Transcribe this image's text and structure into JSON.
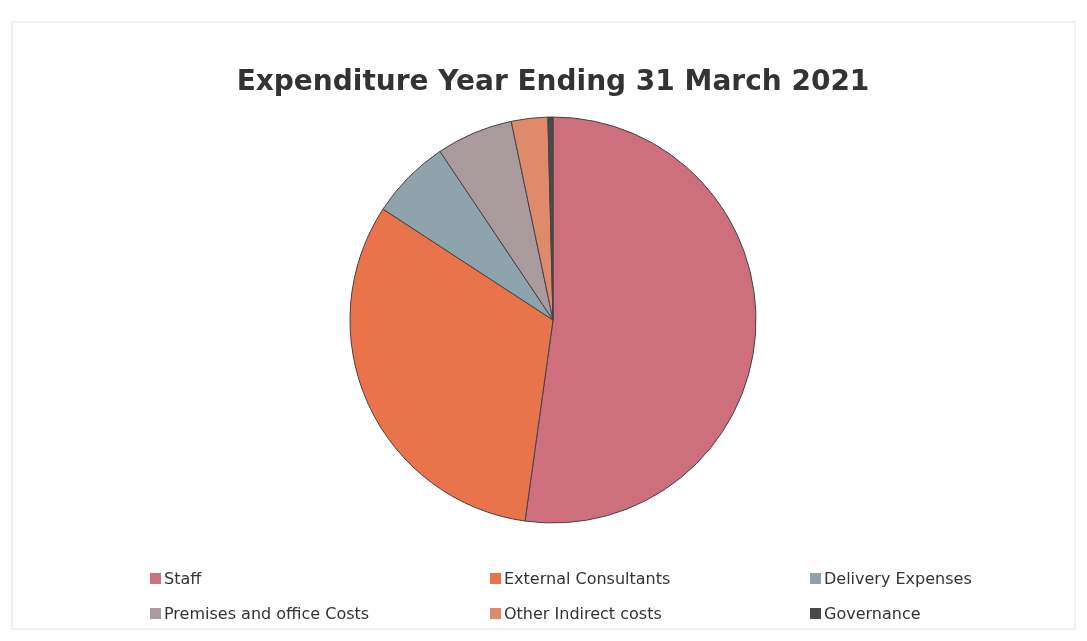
{
  "chart_data": {
    "type": "pie",
    "title": "Expenditure Year Ending 31 March 2021",
    "categories": [
      "Staff",
      "External Consultants",
      "Delivery Expenses",
      "Premises and office Costs",
      "Other Indirect costs",
      "Governance"
    ],
    "values": [
      52.2,
      32,
      6.4,
      6.1,
      2.9,
      0.4
    ],
    "colors": [
      "#cd6f7d",
      "#e9744c",
      "#8fa3ad",
      "#a99a9d",
      "#e08a6c",
      "#4a4a4a"
    ],
    "legend": "bottom"
  }
}
